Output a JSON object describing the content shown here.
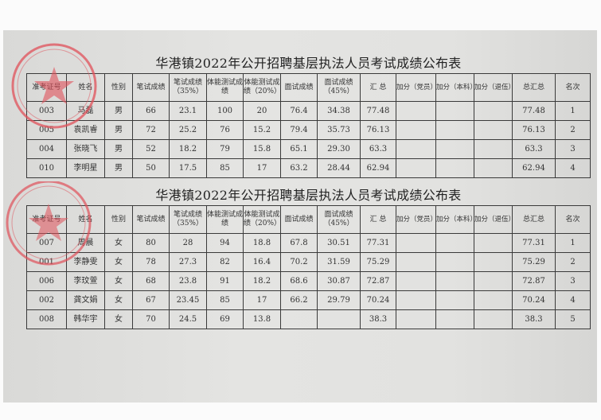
{
  "stamp": {
    "text": "泰州凤城人力资源市场",
    "number": "3212021950",
    "color": "#e0404a"
  },
  "tables": [
    {
      "title": "华港镇2022年公开招聘基层执法人员考试成绩公布表",
      "headers": [
        "准考证号",
        "姓名",
        "性别",
        "笔试成绩",
        "笔试成绩（35%）",
        "体能测试成绩",
        "体能测试成绩（20%）",
        "面试成绩",
        "面试成绩（45%）",
        "汇  总",
        "加分（党员）",
        "加分（本科）",
        "加分（退伍）",
        "总汇总",
        "名次"
      ],
      "rows": [
        [
          "003",
          "马磊",
          "男",
          "66",
          "23.1",
          "100",
          "20",
          "76.4",
          "34.38",
          "77.48",
          "",
          "",
          "",
          "77.48",
          "1"
        ],
        [
          "005",
          "袁凯睿",
          "男",
          "72",
          "25.2",
          "76",
          "15.2",
          "79.4",
          "35.73",
          "76.13",
          "",
          "",
          "",
          "76.13",
          "2"
        ],
        [
          "004",
          "张晓飞",
          "男",
          "52",
          "18.2",
          "79",
          "15.8",
          "65.1",
          "29.30",
          "63.3",
          "",
          "",
          "",
          "63.3",
          "3"
        ],
        [
          "010",
          "李明星",
          "男",
          "50",
          "17.5",
          "85",
          "17",
          "63.2",
          "28.44",
          "62.94",
          "",
          "",
          "",
          "62.94",
          "4"
        ]
      ]
    },
    {
      "title": "华港镇2022年公开招聘基层执法人员考试成绩公布表",
      "headers": [
        "准考证号",
        "姓名",
        "性别",
        "笔试成绩",
        "笔试成绩（35%）",
        "体能测试成绩",
        "体能测试成绩（20%）",
        "面试成绩",
        "面试成绩（45%）",
        "汇  总",
        "加分（党员）",
        "加分（本科）",
        "加分（退伍）",
        "总汇总",
        "名次"
      ],
      "rows": [
        [
          "007",
          "周晨",
          "女",
          "80",
          "28",
          "94",
          "18.8",
          "67.8",
          "30.51",
          "77.31",
          "",
          "",
          "",
          "77.31",
          "1"
        ],
        [
          "001",
          "李静雯",
          "女",
          "78",
          "27.3",
          "82",
          "16.4",
          "70.2",
          "31.59",
          "75.29",
          "",
          "",
          "",
          "75.29",
          "2"
        ],
        [
          "006",
          "李玟萱",
          "女",
          "68",
          "23.8",
          "91",
          "18.2",
          "68.6",
          "30.87",
          "72.87",
          "",
          "",
          "",
          "72.87",
          "3"
        ],
        [
          "002",
          "龚文娟",
          "女",
          "67",
          "23.45",
          "85",
          "17",
          "66.2",
          "29.79",
          "70.24",
          "",
          "",
          "",
          "70.24",
          "4"
        ],
        [
          "008",
          "韩华宇",
          "女",
          "70",
          "24.5",
          "69",
          "13.8",
          "",
          "",
          "38.3",
          "",
          "",
          "",
          "38.3",
          "5"
        ]
      ]
    }
  ]
}
